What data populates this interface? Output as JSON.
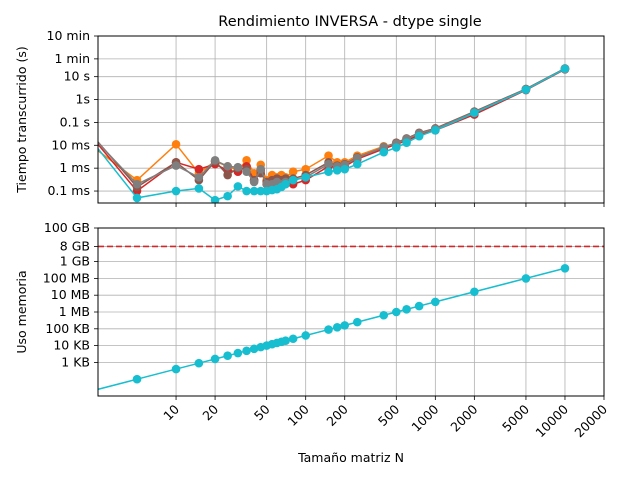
{
  "title": "Rendimiento INVERSA - dtype single",
  "chart_data": [
    {
      "type": "line",
      "title": "Rendimiento INVERSA - dtype single",
      "xlabel": "",
      "ylabel": "Tiempo transcurrido (s)",
      "xscale": "log",
      "yscale": "log",
      "xlim": [
        2.5,
        20000
      ],
      "ylim": [
        3e-05,
        600
      ],
      "ytick_values": [
        0.0001,
        0.001,
        0.01,
        0.1,
        1,
        10,
        60,
        600
      ],
      "ytick_labels": [
        "0.1 ms",
        "1 ms",
        "10 ms",
        "0.1 s",
        "1s",
        "10 s",
        "1 min",
        "10 min"
      ],
      "grid": true,
      "series": [
        {
          "color": "#ff7f0e",
          "x": [
            2,
            5,
            10,
            15,
            20,
            25,
            30,
            35,
            40,
            45,
            50,
            55,
            60,
            65,
            70,
            80,
            100,
            150,
            175,
            200,
            250,
            400,
            500,
            600,
            750,
            1000,
            2000,
            5000,
            10000
          ],
          "y": [
            0.015,
            0.0003,
            0.011,
            0.0006,
            0.002,
            0.0012,
            0.0008,
            0.0022,
            0.0006,
            0.0014,
            0.0003,
            0.0005,
            0.0004,
            0.0005,
            0.0004,
            0.0007,
            0.0009,
            0.0035,
            0.0018,
            0.0018,
            0.0035,
            0.009,
            0.012,
            0.018,
            0.03,
            0.05,
            0.25,
            2.8,
            22
          ]
        },
        {
          "color": "#d62728",
          "x": [
            2,
            5,
            10,
            15,
            20,
            25,
            30,
            35,
            40,
            45,
            50,
            55,
            60,
            65,
            70,
            80,
            100,
            150,
            175,
            200,
            250,
            400,
            500,
            600,
            750,
            1000,
            2000,
            5000,
            10000
          ],
          "y": [
            0.05,
            0.0001,
            0.0018,
            0.0009,
            0.0015,
            0.0008,
            0.0007,
            0.0012,
            0.0003,
            0.0008,
            0.0002,
            0.00025,
            0.0003,
            0.00025,
            0.0003,
            0.0002,
            0.0003,
            0.0012,
            0.0011,
            0.0012,
            0.0025,
            0.007,
            0.011,
            0.016,
            0.028,
            0.045,
            0.22,
            2.6,
            21
          ]
        },
        {
          "color": "#8c564b",
          "x": [
            2,
            5,
            10,
            15,
            20,
            25,
            30,
            35,
            40,
            45,
            50,
            55,
            60,
            65,
            70,
            80,
            100,
            150,
            175,
            200,
            250,
            400,
            500,
            600,
            750,
            1000,
            2000,
            5000,
            10000
          ],
          "y": [
            0.06,
            0.00015,
            0.0018,
            0.0003,
            0.002,
            0.0005,
            0.001,
            0.0009,
            0.0003,
            0.0006,
            0.00025,
            0.0003,
            0.00035,
            0.0003,
            0.00035,
            0.00035,
            0.0005,
            0.0018,
            0.0013,
            0.0015,
            0.003,
            0.008,
            0.013,
            0.02,
            0.035,
            0.055,
            0.3,
            2.9,
            23
          ]
        },
        {
          "color": "#7f7f7f",
          "x": [
            2,
            5,
            10,
            15,
            20,
            25,
            30,
            35,
            40,
            45,
            50,
            55,
            60,
            65,
            70,
            80,
            100,
            150,
            175,
            200,
            250,
            400,
            500,
            600,
            750,
            1000,
            2000,
            5000,
            10000
          ],
          "y": [
            0.05,
            0.0002,
            0.0013,
            0.0004,
            0.0022,
            0.0012,
            0.0011,
            0.0007,
            0.00025,
            0.0009,
            0.0002,
            0.0002,
            0.00025,
            0.0002,
            0.00025,
            0.0003,
            0.0004,
            0.0015,
            0.0012,
            0.0014,
            0.0028,
            0.0085,
            0.012,
            0.019,
            0.033,
            0.052,
            0.28,
            2.8,
            22
          ]
        },
        {
          "color": "#17becf",
          "x": [
            2,
            5,
            10,
            15,
            20,
            25,
            30,
            35,
            40,
            45,
            50,
            55,
            60,
            65,
            70,
            80,
            100,
            150,
            175,
            200,
            250,
            400,
            500,
            600,
            750,
            1000,
            2000,
            5000,
            10000
          ],
          "y": [
            0.035,
            5e-05,
            0.0001,
            0.00013,
            4e-05,
            6e-05,
            0.00016,
            0.0001,
            0.0001,
            0.0001,
            0.0001,
            0.00011,
            0.00012,
            0.00015,
            0.0002,
            0.0003,
            0.0004,
            0.0007,
            0.0008,
            0.0009,
            0.0015,
            0.005,
            0.008,
            0.013,
            0.025,
            0.045,
            0.26,
            2.7,
            22
          ]
        }
      ]
    },
    {
      "type": "line",
      "xlabel": "Tamaño matriz N",
      "ylabel": "Uso memoria",
      "xscale": "log",
      "yscale": "log",
      "xlim": [
        2.5,
        20000
      ],
      "ylim": [
        10,
        100000000000
      ],
      "xtick_values": [
        10,
        20,
        50,
        100,
        200,
        500,
        1000,
        2000,
        5000,
        10000,
        20000
      ],
      "xtick_labels": [
        "10",
        "20",
        "50",
        "100",
        "200",
        "500",
        "1000",
        "2000",
        "5000",
        "10000",
        "20000"
      ],
      "ytick_values": [
        1000,
        10000,
        100000,
        1000000,
        10000000,
        100000000,
        1000000000,
        8000000000,
        100000000000
      ],
      "ytick_labels": [
        "1 KB",
        "10 KB",
        "100 KB",
        "1 MB",
        "10 MB",
        "100 MB",
        "1 GB",
        "8 GB",
        "100 GB"
      ],
      "grid": true,
      "reference_line": {
        "y": 8000000000,
        "color": "#d62728",
        "style": "dashed"
      },
      "series": [
        {
          "color": "#17becf",
          "x": [
            2,
            5,
            10,
            15,
            20,
            25,
            30,
            35,
            40,
            45,
            50,
            55,
            60,
            65,
            70,
            80,
            100,
            150,
            175,
            200,
            250,
            400,
            500,
            600,
            750,
            1000,
            2000,
            5000,
            10000
          ],
          "y": [
            16,
            100,
            400,
            900,
            1600,
            2500,
            3600,
            4900,
            6400,
            8100,
            10000,
            12100,
            14400,
            16900,
            19600,
            25600,
            40000,
            90000,
            122500,
            160000,
            250000,
            640000,
            1000000,
            1440000,
            2250000,
            4000000,
            16000000,
            100000000,
            400000000
          ]
        }
      ]
    }
  ]
}
